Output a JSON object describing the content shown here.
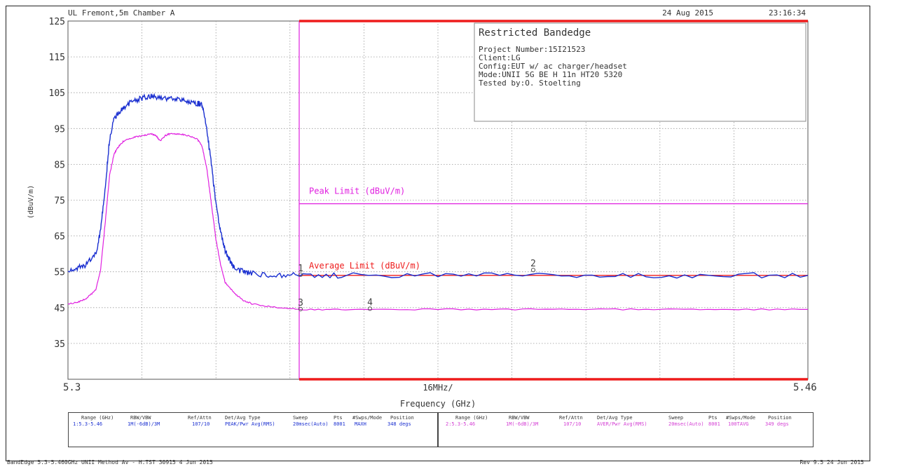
{
  "header": {
    "site": "UL Fremont,5m Chamber A",
    "date": "24 Aug 2015",
    "time": "23:16:34"
  },
  "info_box": {
    "title": "Restricted Bandedge",
    "lines": [
      "Project Number:15I21523",
      "Client:LG",
      "Config:EUT w/ ac charger/headset",
      "Mode:UNII 5G BE H 11n HT20 5320",
      "Tested by:O. Stoelting"
    ]
  },
  "chart_data": {
    "type": "line",
    "xlabel": "Frequency (GHz)",
    "ylabel": "(dBuV/m)",
    "xlim": [
      5.3,
      5.46
    ],
    "ylim": [
      25,
      125
    ],
    "x_tick_labels": [
      "5.3",
      "5.46"
    ],
    "x_center_label": "16MHz/",
    "y_ticks": [
      125,
      115,
      105,
      95,
      85,
      75,
      65,
      55,
      45,
      35
    ],
    "grid": true,
    "colors": {
      "peak": "#1a2fd0",
      "average": "#e020e0",
      "limit": "#ee1c1c",
      "band_edge": "#e020e0"
    },
    "band_edge_ghz": 5.35,
    "limits": [
      {
        "name": "Peak Limit (dBuV/m)",
        "value": 74
      },
      {
        "name": "Average Limit (dBuV/m)",
        "value": 54
      }
    ],
    "series": [
      {
        "key": "peak",
        "x": [
          5.3,
          5.302,
          5.304,
          5.306,
          5.307,
          5.308,
          5.309,
          5.31,
          5.311,
          5.312,
          5.314,
          5.316,
          5.318,
          5.32,
          5.322,
          5.324,
          5.326,
          5.328,
          5.329,
          5.33,
          5.331,
          5.332,
          5.333,
          5.334,
          5.335,
          5.336,
          5.338,
          5.34,
          5.345,
          5.35,
          5.36,
          5.38,
          5.4,
          5.42,
          5.44,
          5.46
        ],
        "y": [
          55,
          56,
          57,
          60,
          66,
          78,
          92,
          98,
          99.5,
          101,
          102.5,
          103.5,
          104,
          103.5,
          103.5,
          103,
          102.5,
          102,
          101.5,
          95,
          85,
          74,
          66,
          61,
          58,
          56,
          55,
          54.5,
          54,
          54,
          54,
          54,
          54,
          54,
          54,
          54
        ]
      },
      {
        "key": "average",
        "x": [
          5.3,
          5.302,
          5.304,
          5.306,
          5.307,
          5.308,
          5.309,
          5.31,
          5.311,
          5.312,
          5.314,
          5.316,
          5.318,
          5.319,
          5.32,
          5.321,
          5.322,
          5.324,
          5.326,
          5.328,
          5.329,
          5.33,
          5.331,
          5.332,
          5.333,
          5.334,
          5.336,
          5.338,
          5.34,
          5.345,
          5.35,
          5.36,
          5.38,
          5.4,
          5.42,
          5.44,
          5.46
        ],
        "y": [
          46,
          46.5,
          47.5,
          50,
          55,
          68,
          82,
          88,
          90,
          91.5,
          92.5,
          93,
          93.5,
          93,
          91.5,
          93,
          93.5,
          93.5,
          93,
          92,
          90,
          84,
          74,
          64,
          57,
          52,
          49,
          47,
          46,
          45,
          44.5,
          44.5,
          44.5,
          44.5,
          44.5,
          44.5,
          44.5
        ]
      }
    ],
    "markers": [
      {
        "label": "1",
        "x": 5.3503,
        "y": 54.2
      },
      {
        "label": "2",
        "x": 5.4006,
        "y": 55.5
      },
      {
        "label": "3",
        "x": 5.3503,
        "y": 44.6
      },
      {
        "label": "4",
        "x": 5.3653,
        "y": 44.7
      }
    ]
  },
  "table_peak": {
    "headers": [
      "Range (GHz)",
      "RBW/VBW",
      "Ref/Attn",
      "Det/Avg Type",
      "Sweep",
      "Pts",
      "#Swps/Mode",
      "Position"
    ],
    "values": [
      "1:5.3-5.46",
      "1M(-6dB)/3M",
      "107/10",
      "PEAK/Pwr Avg(RMS)",
      "20msec(Auto)",
      "8001",
      "MAXH",
      "348 degs"
    ]
  },
  "table_avg": {
    "headers": [
      "Range (GHz)",
      "RBW/VBW",
      "Ref/Attn",
      "Det/Avg Type",
      "Sweep",
      "Pts",
      "#Swps/Mode",
      "Position"
    ],
    "values": [
      "2:5.3-5.46",
      "1M(-6dB)/3M",
      "107/10",
      "AVER/Pwr Avg(RMS)",
      "20msec(Auto)",
      "8001",
      "100TAVG",
      "349 degs"
    ]
  },
  "footer": {
    "left": "BandEdge 5.3-5.460GHz UNII Method Av - H.TST 30915  4 Jun 2015",
    "right": "Rev 9.5 24 Jun 2015"
  }
}
